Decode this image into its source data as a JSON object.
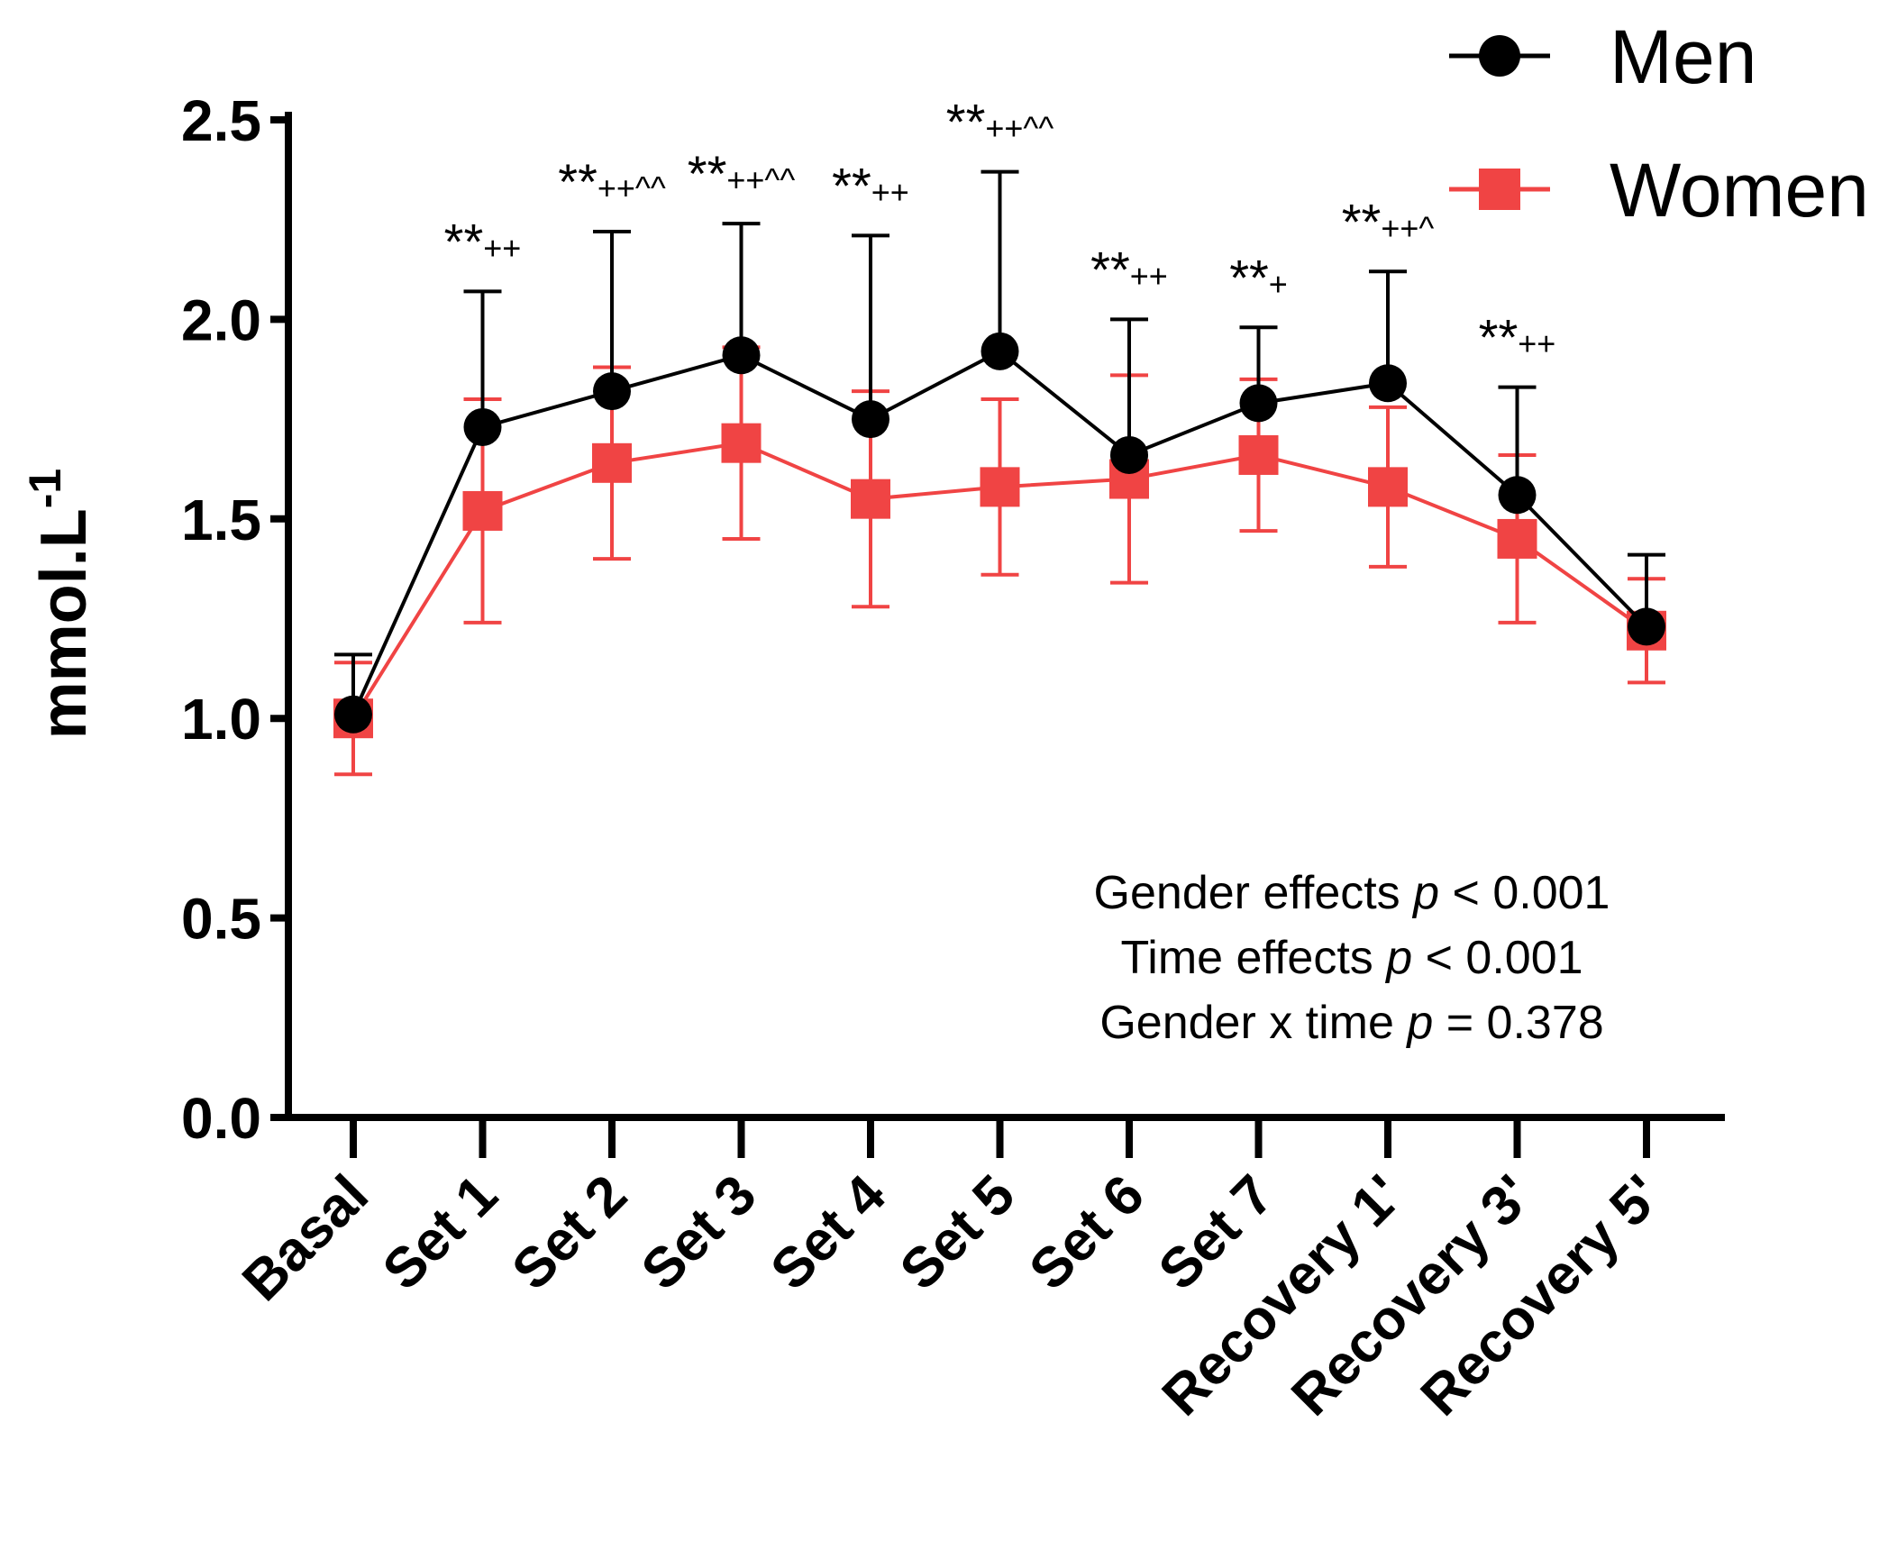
{
  "chart_data": {
    "type": "line",
    "title": "",
    "xlabel": "",
    "ylabel": "mmol.L",
    "ylabel_superscript": "-1",
    "ylim": [
      0,
      2.5
    ],
    "yticks": [
      "0.0",
      "0.5",
      "1.0",
      "1.5",
      "2.0",
      "2.5"
    ],
    "categories": [
      "Basal",
      "Set 1",
      "Set 2",
      "Set 3",
      "Set 4",
      "Set 5",
      "Set 6",
      "Set 7",
      "Recovery 1'",
      "Recovery 3'",
      "Recovery 5'"
    ],
    "series": [
      {
        "name": "Men",
        "color": "#000000",
        "marker": "circle",
        "values": [
          1.01,
          1.73,
          1.82,
          1.91,
          1.75,
          1.92,
          1.66,
          1.79,
          1.84,
          1.56,
          1.23
        ],
        "errors": [
          0.15,
          0.34,
          0.4,
          0.33,
          0.46,
          0.45,
          0.34,
          0.19,
          0.28,
          0.27,
          0.18
        ],
        "error_direction": "up"
      },
      {
        "name": "Women",
        "color": "#f04444",
        "marker": "square",
        "values": [
          1.0,
          1.52,
          1.64,
          1.69,
          1.55,
          1.58,
          1.6,
          1.66,
          1.58,
          1.45,
          1.22
        ],
        "errors": [
          0.14,
          0.28,
          0.24,
          0.24,
          0.27,
          0.22,
          0.26,
          0.19,
          0.2,
          0.21,
          0.13
        ],
        "error_direction": "both"
      }
    ],
    "significance": [
      {
        "category": "Set 1",
        "stars": "**",
        "marks": "++"
      },
      {
        "category": "Set 2",
        "stars": "**",
        "marks": "++^^"
      },
      {
        "category": "Set 3",
        "stars": "**",
        "marks": "++^^"
      },
      {
        "category": "Set 4",
        "stars": "**",
        "marks": "++"
      },
      {
        "category": "Set 5",
        "stars": "**",
        "marks": "++^^"
      },
      {
        "category": "Set 6",
        "stars": "**",
        "marks": "++"
      },
      {
        "category": "Set 7",
        "stars": "**",
        "marks": "+"
      },
      {
        "category": "Recovery 1'",
        "stars": "**",
        "marks": "++^"
      },
      {
        "category": "Recovery 3'",
        "stars": "**",
        "marks": "++"
      }
    ],
    "legend": {
      "position": "top-right",
      "entries": [
        "Men",
        "Women"
      ]
    },
    "annotations": [
      {
        "label": "Gender effects",
        "italic": "p",
        "rest": " < 0.001"
      },
      {
        "label": "Time effects",
        "italic": "p",
        "rest": " < 0.001"
      },
      {
        "label": "Gender x time",
        "italic": "p",
        "rest": " = 0.378"
      }
    ],
    "grid": false
  }
}
